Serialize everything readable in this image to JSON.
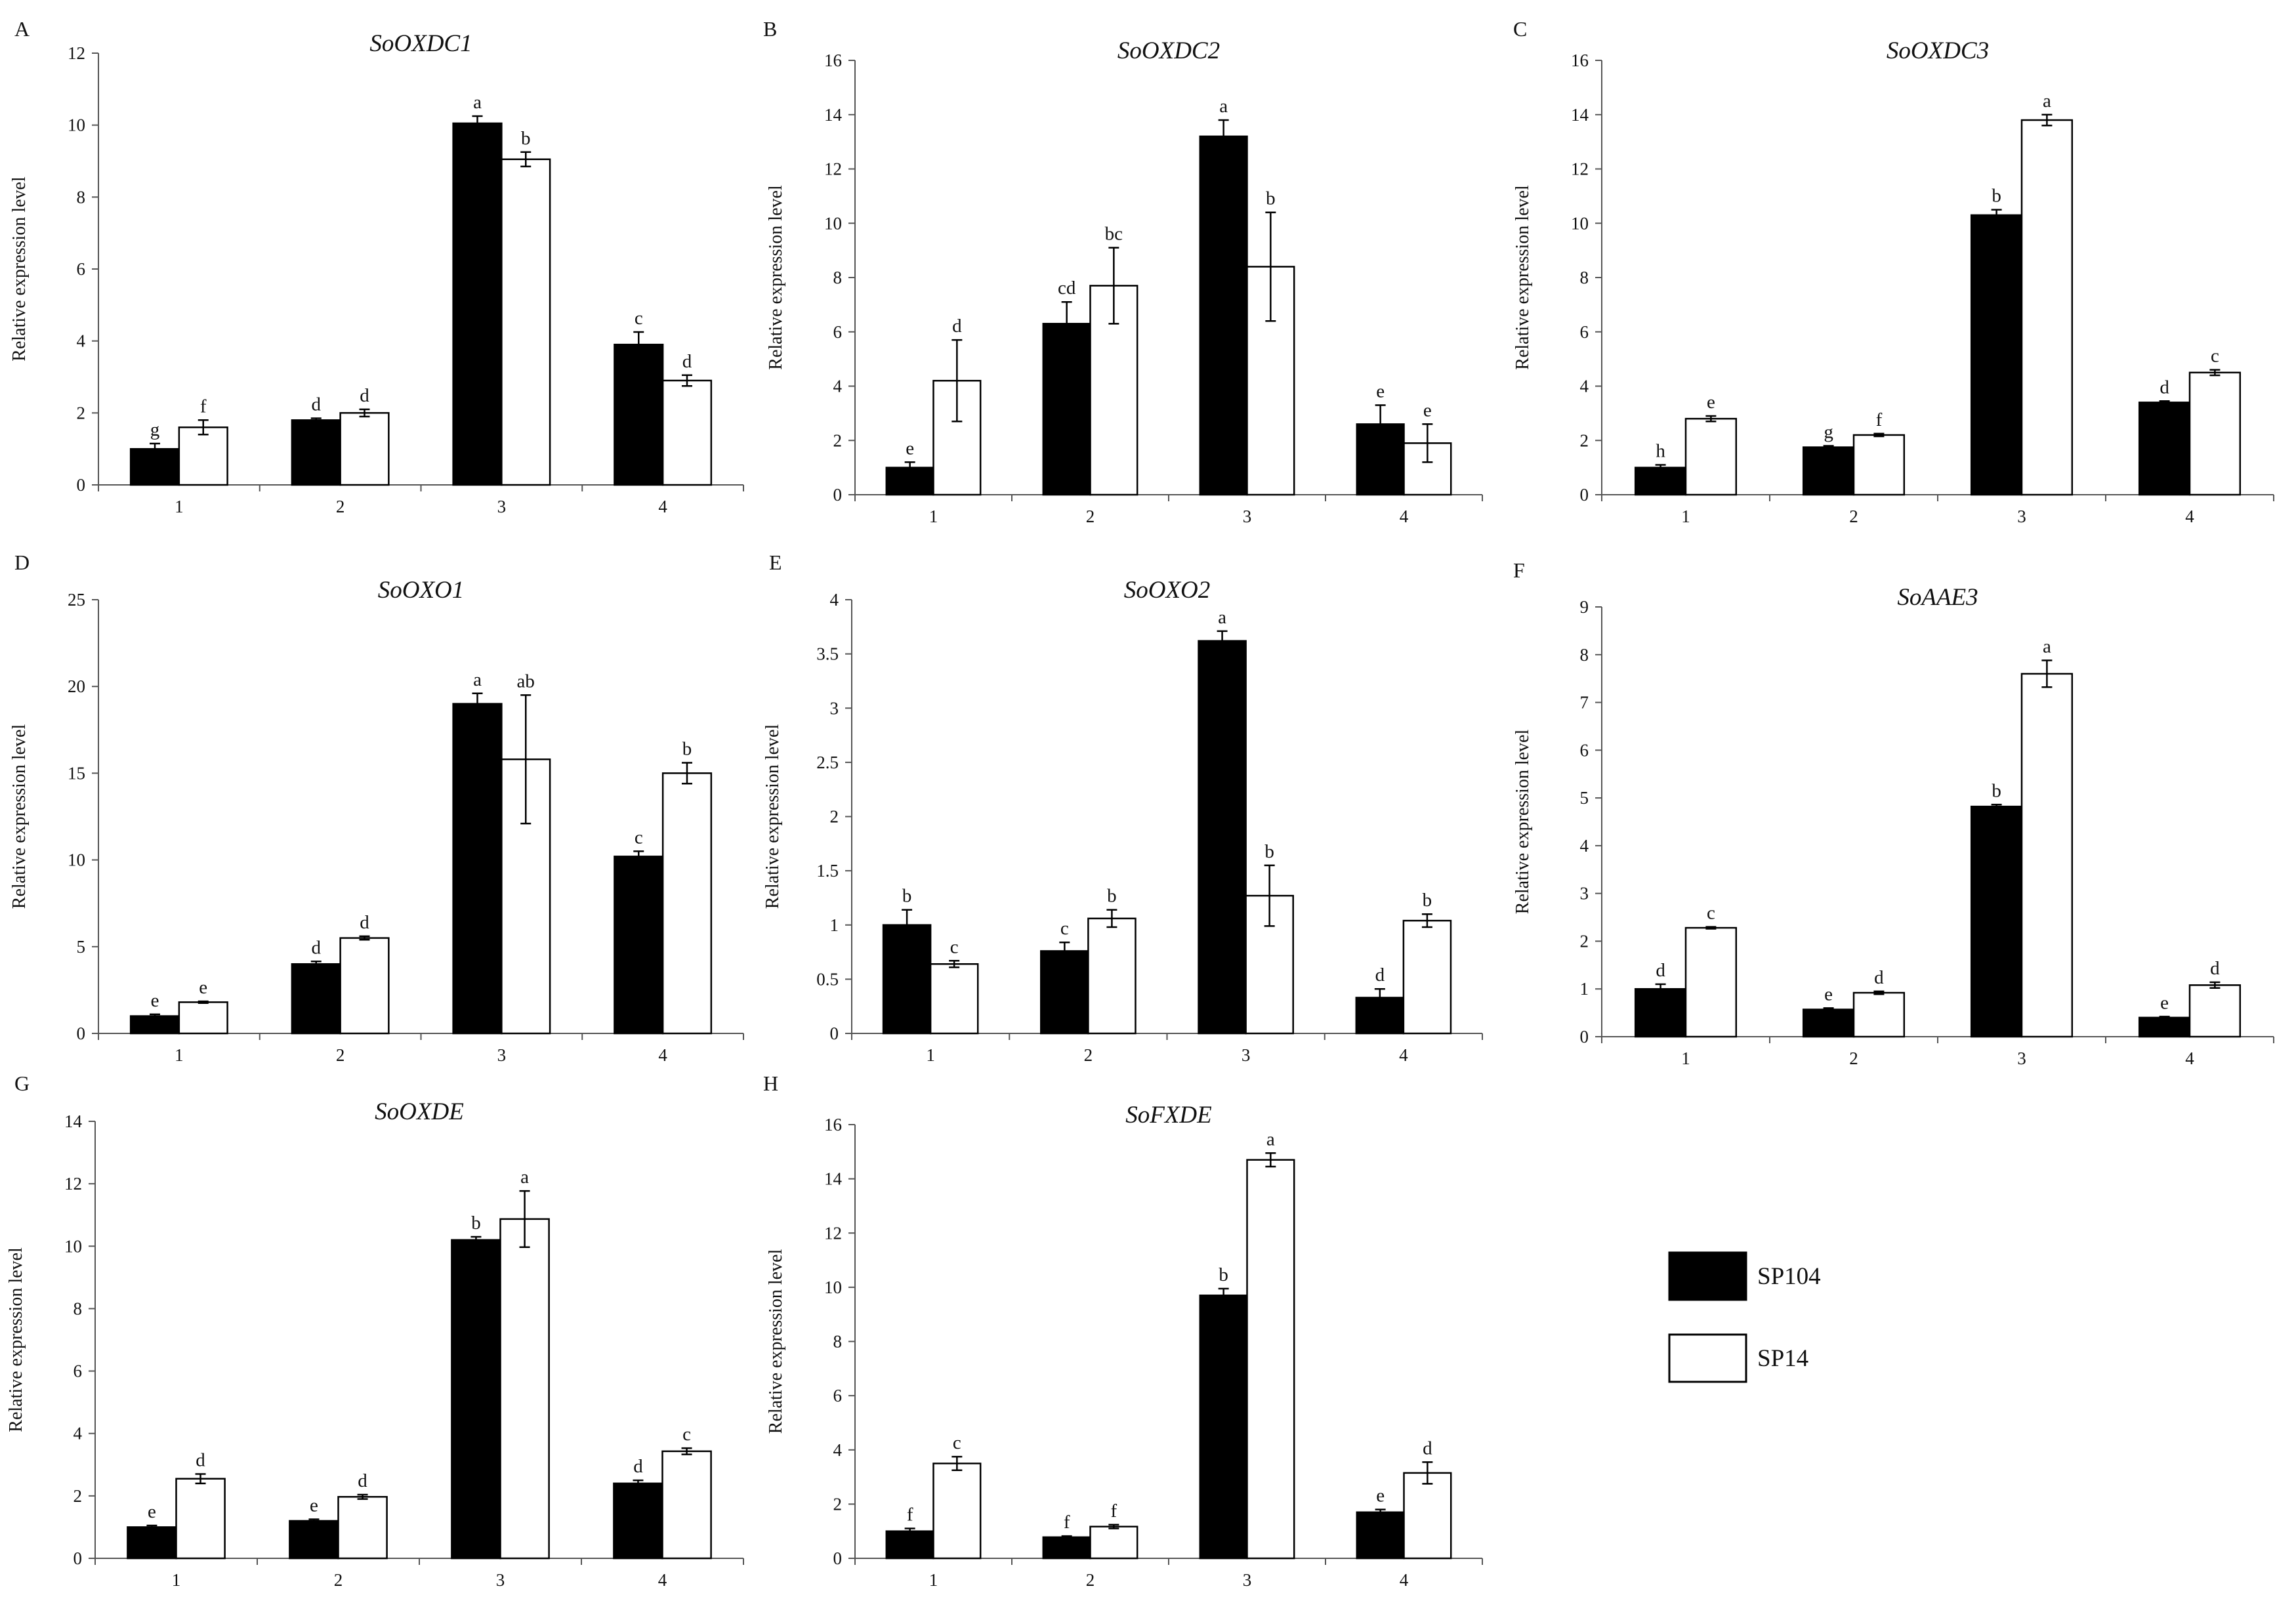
{
  "legend": {
    "entries": [
      {
        "name": "SP104",
        "fill": "#000000"
      },
      {
        "name": "SP14",
        "fill": "#ffffff"
      }
    ]
  },
  "chart_data": [
    {
      "panel": "A",
      "type": "bar",
      "title": "SoOXDC1",
      "ylabel": "Relative expression level",
      "xlabel": "",
      "categories": [
        "1",
        "2",
        "3",
        "4"
      ],
      "ylim": [
        0,
        12
      ],
      "yticks": [
        0,
        2,
        4,
        6,
        8,
        10,
        12
      ],
      "series": [
        {
          "name": "SP104",
          "values": [
            1.0,
            1.8,
            10.05,
            3.9
          ],
          "errors": [
            0.15,
            0.05,
            0.2,
            0.35
          ],
          "letters": [
            "g",
            "d",
            "a",
            "c"
          ]
        },
        {
          "name": "SP14",
          "values": [
            1.6,
            2.0,
            9.05,
            2.9
          ],
          "errors": [
            0.2,
            0.1,
            0.2,
            0.15
          ],
          "letters": [
            "f",
            "d",
            "b",
            "d"
          ]
        }
      ]
    },
    {
      "panel": "B",
      "type": "bar",
      "title": "SoOXDC2",
      "ylabel": "Relative expression level",
      "xlabel": "",
      "categories": [
        "1",
        "2",
        "3",
        "4"
      ],
      "ylim": [
        0,
        16
      ],
      "yticks": [
        0,
        2,
        4,
        6,
        8,
        10,
        12,
        14,
        16
      ],
      "series": [
        {
          "name": "SP104",
          "values": [
            1.0,
            6.3,
            13.2,
            2.6
          ],
          "errors": [
            0.2,
            0.8,
            0.6,
            0.7
          ],
          "letters": [
            "e",
            "cd",
            "a",
            "e"
          ]
        },
        {
          "name": "SP14",
          "values": [
            4.2,
            7.7,
            8.4,
            1.9
          ],
          "errors": [
            1.5,
            1.4,
            2.0,
            0.7
          ],
          "letters": [
            "d",
            "bc",
            "b",
            "e"
          ]
        }
      ]
    },
    {
      "panel": "C",
      "type": "bar",
      "title": "SoOXDC3",
      "ylabel": "Relative expression level",
      "xlabel": "",
      "categories": [
        "1",
        "2",
        "3",
        "4"
      ],
      "ylim": [
        0,
        16
      ],
      "yticks": [
        0,
        2,
        4,
        6,
        8,
        10,
        12,
        14,
        16
      ],
      "series": [
        {
          "name": "SP104",
          "values": [
            1.0,
            1.75,
            10.3,
            3.4
          ],
          "errors": [
            0.1,
            0.05,
            0.2,
            0.05
          ],
          "letters": [
            "h",
            "g",
            "b",
            "d"
          ]
        },
        {
          "name": "SP14",
          "values": [
            2.8,
            2.2,
            13.8,
            4.5
          ],
          "errors": [
            0.1,
            0.05,
            0.2,
            0.1
          ],
          "letters": [
            "e",
            "f",
            "a",
            "c"
          ]
        }
      ]
    },
    {
      "panel": "D",
      "type": "bar",
      "title": "SoOXO1",
      "ylabel": "Relative expression level",
      "xlabel": "",
      "categories": [
        "1",
        "2",
        "3",
        "4"
      ],
      "ylim": [
        0,
        25
      ],
      "yticks": [
        0,
        5,
        10,
        15,
        20,
        25
      ],
      "series": [
        {
          "name": "SP104",
          "values": [
            1.0,
            4.0,
            19.0,
            10.2
          ],
          "errors": [
            0.1,
            0.15,
            0.6,
            0.3
          ],
          "letters": [
            "e",
            "d",
            "a",
            "c"
          ]
        },
        {
          "name": "SP14",
          "values": [
            1.8,
            5.5,
            15.8,
            15.0
          ],
          "errors": [
            0.05,
            0.1,
            3.7,
            0.6
          ],
          "letters": [
            "e",
            "d",
            "ab",
            "b"
          ]
        }
      ]
    },
    {
      "panel": "E",
      "type": "bar",
      "title": "SoOXO2",
      "ylabel": "Relative expression level",
      "xlabel": "",
      "categories": [
        "1",
        "2",
        "3",
        "4"
      ],
      "ylim": [
        0,
        4
      ],
      "yticks": [
        0,
        0.5,
        1,
        1.5,
        2,
        2.5,
        3,
        3.5,
        4
      ],
      "series": [
        {
          "name": "SP104",
          "values": [
            1.0,
            0.76,
            3.62,
            0.33
          ],
          "errors": [
            0.14,
            0.08,
            0.09,
            0.08
          ],
          "letters": [
            "b",
            "c",
            "a",
            "d"
          ]
        },
        {
          "name": "SP14",
          "values": [
            0.64,
            1.06,
            1.27,
            1.04
          ],
          "errors": [
            0.03,
            0.08,
            0.28,
            0.06
          ],
          "letters": [
            "c",
            "b",
            "b",
            "b"
          ]
        }
      ]
    },
    {
      "panel": "F",
      "type": "bar",
      "title": "SoAAE3",
      "ylabel": "Relative expression level",
      "xlabel": "",
      "categories": [
        "1",
        "2",
        "3",
        "4"
      ],
      "ylim": [
        0,
        9
      ],
      "yticks": [
        0,
        1,
        2,
        3,
        4,
        5,
        6,
        7,
        8,
        9
      ],
      "series": [
        {
          "name": "SP104",
          "values": [
            1.0,
            0.57,
            4.82,
            0.4
          ],
          "errors": [
            0.1,
            0.03,
            0.04,
            0.02
          ],
          "letters": [
            "d",
            "e",
            "b",
            "e"
          ]
        },
        {
          "name": "SP14",
          "values": [
            2.28,
            0.92,
            7.6,
            1.08
          ],
          "errors": [
            0.02,
            0.03,
            0.28,
            0.06
          ],
          "letters": [
            "c",
            "d",
            "a",
            "d"
          ]
        }
      ]
    },
    {
      "panel": "G",
      "type": "bar",
      "title": "SoOXDE",
      "ylabel": "Relative expression level",
      "xlabel": "",
      "categories": [
        "1",
        "2",
        "3",
        "4"
      ],
      "ylim": [
        0,
        14
      ],
      "yticks": [
        0,
        2,
        4,
        6,
        8,
        10,
        12,
        14
      ],
      "series": [
        {
          "name": "SP104",
          "values": [
            1.0,
            1.2,
            10.2,
            2.4
          ],
          "errors": [
            0.05,
            0.05,
            0.1,
            0.1
          ],
          "letters": [
            "e",
            "e",
            "b",
            "d"
          ]
        },
        {
          "name": "SP14",
          "values": [
            2.55,
            1.97,
            10.87,
            3.43
          ],
          "errors": [
            0.15,
            0.07,
            0.9,
            0.1
          ],
          "letters": [
            "d",
            "d",
            "a",
            "c"
          ]
        }
      ]
    },
    {
      "panel": "H",
      "type": "bar",
      "title": "SoFXDE",
      "ylabel": "Relative expression level",
      "xlabel": "",
      "categories": [
        "1",
        "2",
        "3",
        "4"
      ],
      "ylim": [
        0,
        16
      ],
      "yticks": [
        0,
        2,
        4,
        6,
        8,
        10,
        12,
        14,
        16
      ],
      "series": [
        {
          "name": "SP104",
          "values": [
            1.0,
            0.78,
            9.7,
            1.7
          ],
          "errors": [
            0.1,
            0.04,
            0.25,
            0.1
          ],
          "letters": [
            "f",
            "f",
            "b",
            "e"
          ]
        },
        {
          "name": "SP14",
          "values": [
            3.5,
            1.17,
            14.7,
            3.15
          ],
          "errors": [
            0.25,
            0.07,
            0.25,
            0.4
          ],
          "letters": [
            "c",
            "f",
            "a",
            "d"
          ]
        }
      ]
    }
  ]
}
